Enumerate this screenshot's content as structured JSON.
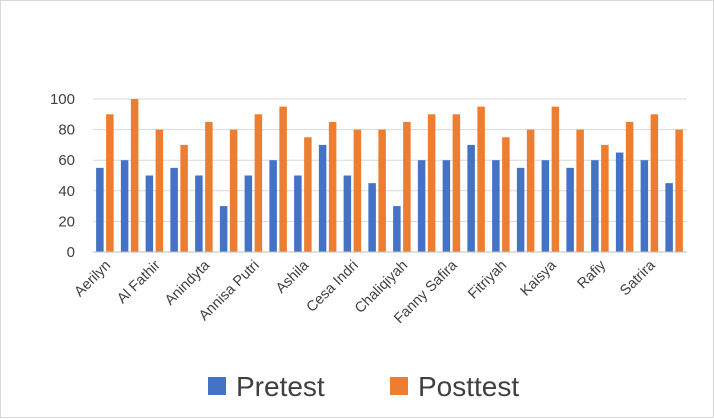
{
  "chart_data": {
    "type": "bar",
    "title": "",
    "xlabel": "",
    "ylabel": "",
    "ylim": [
      0,
      100
    ],
    "yticks": [
      0,
      20,
      40,
      60,
      80,
      100
    ],
    "grid": true,
    "legend_position": "bottom",
    "categories": [
      "Aerilyn",
      "",
      "Al Fathir",
      "",
      "Anindyta",
      "",
      "Annisa Putri",
      "",
      "Ashila",
      "",
      "Cesa Indri",
      "",
      "Chaliqiyah",
      "",
      "Fanny Safira",
      "",
      "Fitriyah",
      "",
      "Kaisya",
      "",
      "Rafiy",
      "",
      "Satrira",
      ""
    ],
    "series": [
      {
        "name": "Pretest",
        "color": "#4472C4",
        "values": [
          55,
          60,
          50,
          55,
          50,
          30,
          50,
          60,
          50,
          70,
          50,
          45,
          30,
          60,
          60,
          70,
          60,
          55,
          60,
          55,
          60,
          65,
          60,
          45
        ]
      },
      {
        "name": "Posttest",
        "color": "#ED7D31",
        "values": [
          90,
          100,
          80,
          70,
          85,
          80,
          90,
          95,
          75,
          85,
          80,
          80,
          85,
          90,
          90,
          95,
          75,
          80,
          95,
          80,
          70,
          85,
          90,
          80
        ]
      }
    ]
  }
}
